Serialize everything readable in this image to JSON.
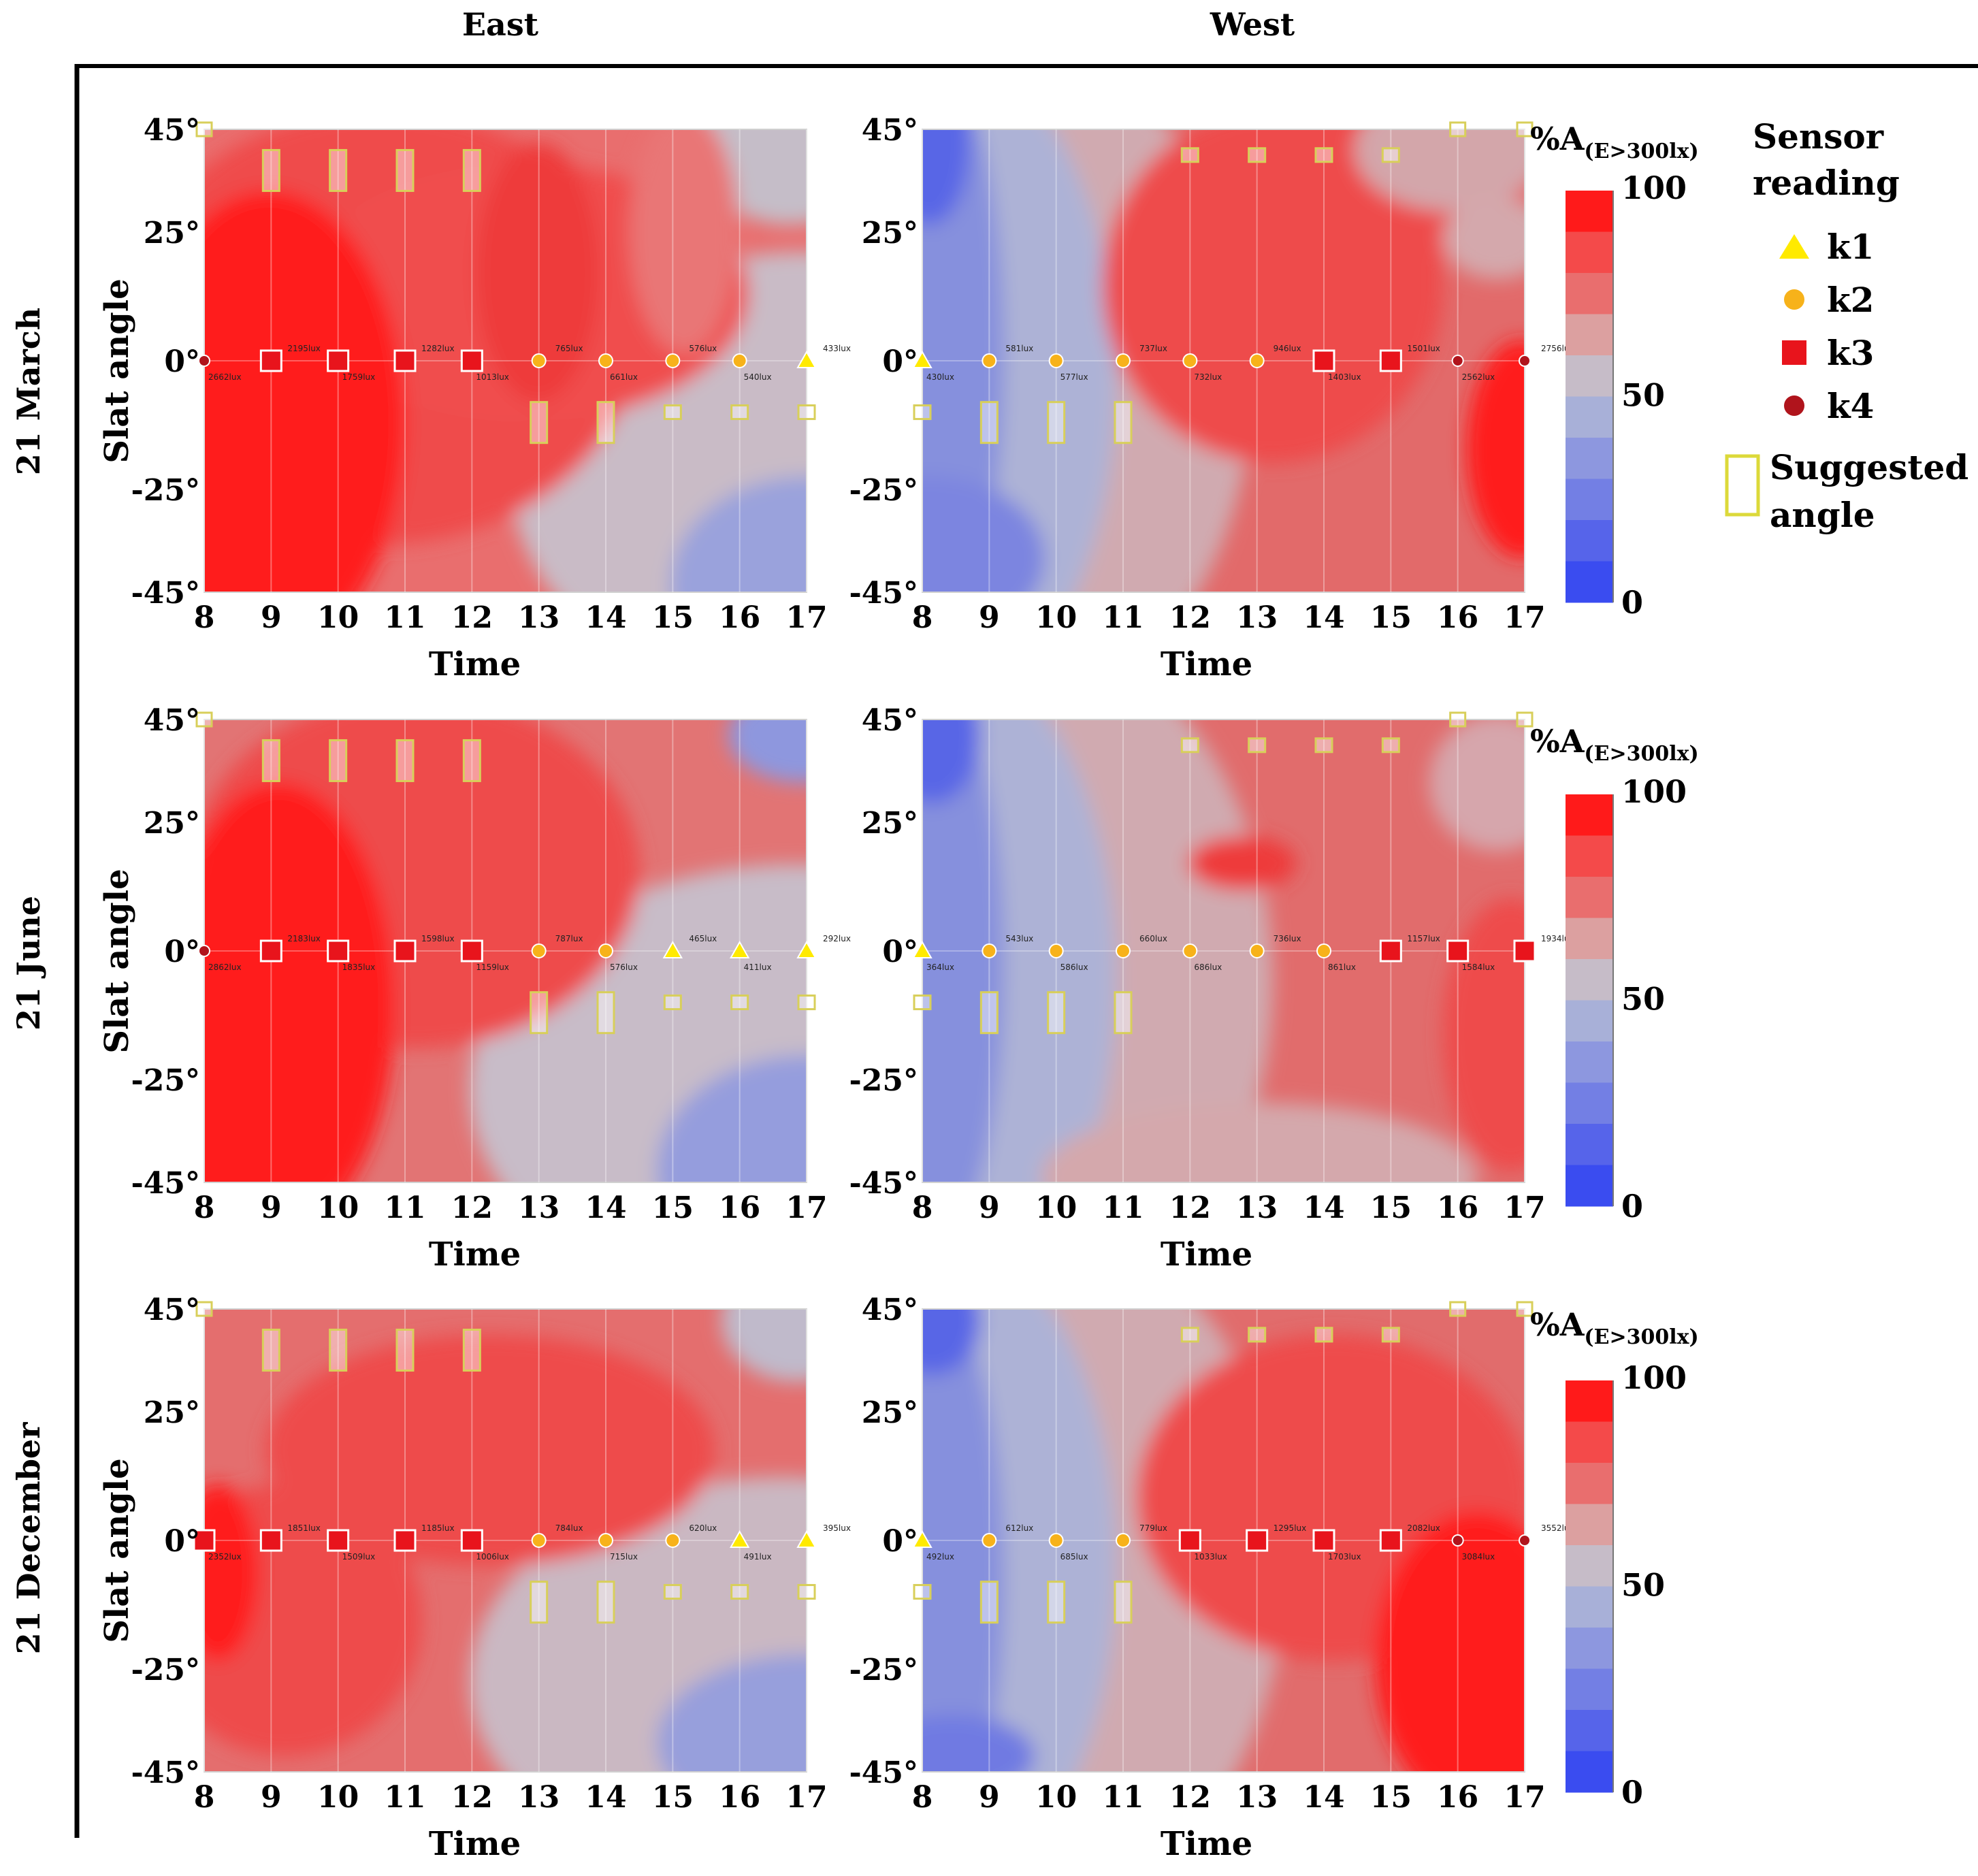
{
  "columns": [
    "East",
    "West"
  ],
  "rows": [
    "21 March",
    "21 June",
    "21 December"
  ],
  "axis": {
    "x_label": "Time",
    "y_label": "Slat angle",
    "x_ticks": [
      "8",
      "9",
      "10",
      "11",
      "12",
      "13",
      "14",
      "15",
      "16",
      "17"
    ],
    "y_ticks": [
      "45°",
      "25°",
      "0°",
      "-25°",
      "-45°"
    ]
  },
  "colorbar": {
    "title_main": "%A",
    "title_sub": "(E>300lx)",
    "labels": [
      "100",
      "50",
      "0"
    ],
    "colors": [
      "#ff1a1a",
      "#f44a4a",
      "#e96e6e",
      "#dca0a0",
      "#c6bcc8",
      "#a8b0d8",
      "#8d97df",
      "#737fe4",
      "#5664ea",
      "#3a4cf0"
    ]
  },
  "legend": {
    "title_line1": "Sensor",
    "title_line2": "reading",
    "items": [
      {
        "name": "k1",
        "shape": "triangle",
        "color": "#ffea00"
      },
      {
        "name": "k2",
        "shape": "circle",
        "color": "#f7b21a"
      },
      {
        "name": "k3",
        "shape": "square",
        "color": "#e8141c"
      },
      {
        "name": "k4",
        "shape": "circle",
        "color": "#b0141c"
      }
    ],
    "suggested_line1": "Suggested",
    "suggested_line2": "angle"
  },
  "chart_data": [
    {
      "type": "contour",
      "title": "21 March East",
      "xlabel": "Time",
      "ylabel": "Slat angle",
      "x": [
        8,
        9,
        10,
        11,
        12,
        13,
        14,
        15,
        16,
        17
      ],
      "ylim": [
        -45,
        45
      ],
      "sensor_angle": 0,
      "sensors": [
        "k4",
        "k3",
        "k3",
        "k3",
        "k3",
        "k2",
        "k2",
        "k2",
        "k2",
        "k1"
      ],
      "lux_upper": [
        "",
        "2195lux",
        "",
        "1282lux",
        "",
        "765lux",
        "",
        "576lux",
        "",
        "433lux"
      ],
      "lux_lower": [
        "2662lux",
        "",
        "1759lux",
        "",
        "1013lux",
        "",
        "661lux",
        "",
        "540lux",
        ""
      ],
      "suggested_angle": [
        45,
        37,
        37,
        37,
        37,
        -12,
        -12,
        -10,
        -10,
        -10
      ]
    },
    {
      "type": "contour",
      "title": "21 March West",
      "xlabel": "Time",
      "ylabel": "Slat angle",
      "x": [
        8,
        9,
        10,
        11,
        12,
        13,
        14,
        15,
        16,
        17
      ],
      "ylim": [
        -45,
        45
      ],
      "sensor_angle": 0,
      "sensors": [
        "k1",
        "k2",
        "k2",
        "k2",
        "k2",
        "k2",
        "k3",
        "k3",
        "k4",
        "k4"
      ],
      "lux_upper": [
        "",
        "581lux",
        "",
        "737lux",
        "",
        "946lux",
        "",
        "1501lux",
        "",
        "2756lux"
      ],
      "lux_lower": [
        "430lux",
        "",
        "577lux",
        "",
        "732lux",
        "",
        "1403lux",
        "",
        "2562lux",
        ""
      ],
      "suggested_angle": [
        -10,
        -12,
        -12,
        -12,
        40,
        40,
        40,
        40,
        45,
        45
      ]
    },
    {
      "type": "contour",
      "title": "21 June East",
      "xlabel": "Time",
      "ylabel": "Slat angle",
      "x": [
        8,
        9,
        10,
        11,
        12,
        13,
        14,
        15,
        16,
        17
      ],
      "ylim": [
        -45,
        45
      ],
      "sensor_angle": 0,
      "sensors": [
        "k4",
        "k3",
        "k3",
        "k3",
        "k3",
        "k2",
        "k2",
        "k1",
        "k1",
        "k1"
      ],
      "lux_upper": [
        "",
        "2183lux",
        "",
        "1598lux",
        "",
        "787lux",
        "",
        "465lux",
        "",
        "292lux"
      ],
      "lux_lower": [
        "2862lux",
        "",
        "1835lux",
        "",
        "1159lux",
        "",
        "576lux",
        "",
        "411lux",
        ""
      ],
      "suggested_angle": [
        45,
        37,
        37,
        37,
        37,
        -12,
        -12,
        -10,
        -10,
        -10
      ]
    },
    {
      "type": "contour",
      "title": "21 June West",
      "xlabel": "Time",
      "ylabel": "Slat angle",
      "x": [
        8,
        9,
        10,
        11,
        12,
        13,
        14,
        15,
        16,
        17
      ],
      "ylim": [
        -45,
        45
      ],
      "sensor_angle": 0,
      "sensors": [
        "k1",
        "k2",
        "k2",
        "k2",
        "k2",
        "k2",
        "k2",
        "k3",
        "k3",
        "k3"
      ],
      "lux_upper": [
        "",
        "543lux",
        "",
        "660lux",
        "",
        "736lux",
        "",
        "1157lux",
        "",
        "1934lux"
      ],
      "lux_lower": [
        "364lux",
        "",
        "586lux",
        "",
        "686lux",
        "",
        "861lux",
        "",
        "1584lux",
        ""
      ],
      "suggested_angle": [
        -10,
        -12,
        -12,
        -12,
        40,
        40,
        40,
        40,
        45,
        45
      ]
    },
    {
      "type": "contour",
      "title": "21 December East",
      "xlabel": "Time",
      "ylabel": "Slat angle",
      "x": [
        8,
        9,
        10,
        11,
        12,
        13,
        14,
        15,
        16,
        17
      ],
      "ylim": [
        -45,
        45
      ],
      "sensor_angle": 0,
      "sensors": [
        "k3",
        "k3",
        "k3",
        "k3",
        "k3",
        "k2",
        "k2",
        "k2",
        "k1",
        "k1"
      ],
      "lux_upper": [
        "",
        "1851lux",
        "",
        "1185lux",
        "",
        "784lux",
        "",
        "620lux",
        "",
        "395lux"
      ],
      "lux_lower": [
        "2352lux",
        "",
        "1509lux",
        "",
        "1006lux",
        "",
        "715lux",
        "",
        "491lux",
        ""
      ],
      "suggested_angle": [
        45,
        37,
        37,
        37,
        37,
        -12,
        -12,
        -10,
        -10,
        -10
      ]
    },
    {
      "type": "contour",
      "title": "21 December West",
      "xlabel": "Time",
      "ylabel": "Slat angle",
      "x": [
        8,
        9,
        10,
        11,
        12,
        13,
        14,
        15,
        16,
        17
      ],
      "ylim": [
        -45,
        45
      ],
      "sensor_angle": 0,
      "sensors": [
        "k1",
        "k2",
        "k2",
        "k2",
        "k3",
        "k3",
        "k3",
        "k3",
        "k4",
        "k4"
      ],
      "lux_upper": [
        "",
        "612lux",
        "",
        "779lux",
        "",
        "1295lux",
        "",
        "2082lux",
        "",
        "3552lux"
      ],
      "lux_lower": [
        "492lux",
        "",
        "685lux",
        "",
        "1033lux",
        "",
        "1703lux",
        "",
        "3084lux",
        ""
      ],
      "suggested_angle": [
        -10,
        -12,
        -12,
        -12,
        40,
        40,
        40,
        40,
        45,
        45
      ]
    }
  ]
}
